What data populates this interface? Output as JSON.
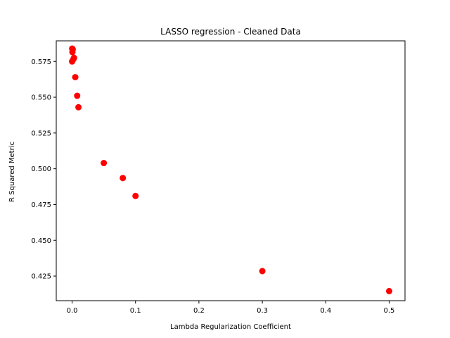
{
  "chart_data": {
    "type": "scatter",
    "title": "LASSO regression - Cleaned Data",
    "xlabel": "Lambda Regularization Coefficient",
    "ylabel": "R Squared Metric",
    "xlim": [
      -0.025,
      0.525
    ],
    "ylim": [
      0.4078,
      0.5894
    ],
    "xticks": [
      0.0,
      0.1,
      0.2,
      0.3,
      0.4,
      0.5
    ],
    "xtick_labels": [
      "0.0",
      "0.1",
      "0.2",
      "0.3",
      "0.4",
      "0.5"
    ],
    "yticks": [
      0.425,
      0.45,
      0.475,
      0.5,
      0.525,
      0.55,
      0.575
    ],
    "ytick_labels": [
      "0.425",
      "0.450",
      "0.475",
      "0.500",
      "0.525",
      "0.550",
      "0.575"
    ],
    "grid": false,
    "legend": "none",
    "marker_color": "#ff0000",
    "points": [
      {
        "x": 0.0001,
        "y": 0.584
      },
      {
        "x": 0.0005,
        "y": 0.5815
      },
      {
        "x": 0.001,
        "y": 0.5835
      },
      {
        "x": 0.002,
        "y": 0.5765
      },
      {
        "x": 0.003,
        "y": 0.5775
      },
      {
        "x": 0.0,
        "y": 0.575
      },
      {
        "x": 0.005,
        "y": 0.564
      },
      {
        "x": 0.008,
        "y": 0.551
      },
      {
        "x": 0.01,
        "y": 0.543
      },
      {
        "x": 0.05,
        "y": 0.504
      },
      {
        "x": 0.08,
        "y": 0.4935
      },
      {
        "x": 0.1,
        "y": 0.481
      },
      {
        "x": 0.3,
        "y": 0.4285
      },
      {
        "x": 0.5,
        "y": 0.4145
      }
    ]
  }
}
